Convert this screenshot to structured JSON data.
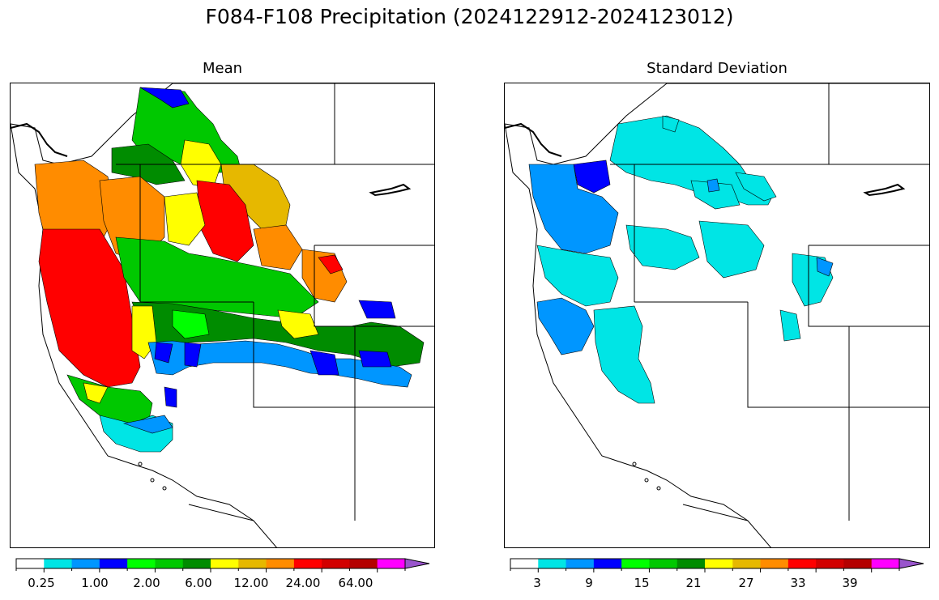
{
  "title": "F084-F108 Precipitation (2024122912-2024123012)",
  "panels": [
    {
      "title": "Mean",
      "colorbar": {
        "colors": [
          "#ffffff",
          "#00e5e5",
          "#0096ff",
          "#0000ff",
          "#00ff00",
          "#00c800",
          "#008c00",
          "#ffff00",
          "#e6b800",
          "#ff8c00",
          "#ff0000",
          "#d20000",
          "#b40000",
          "#ff00ff",
          "#9955cc"
        ],
        "tick_labels": [
          "0.25",
          "1.00",
          "2.00",
          "6.00",
          "12.00",
          "24.00",
          "64.00"
        ],
        "extend": "max"
      }
    },
    {
      "title": "Standard Deviation",
      "colorbar": {
        "colors": [
          "#ffffff",
          "#00e5e5",
          "#0096ff",
          "#0000ff",
          "#00ff00",
          "#00c800",
          "#008c00",
          "#ffff00",
          "#e6b800",
          "#ff8c00",
          "#ff0000",
          "#d20000",
          "#b40000",
          "#ff00ff",
          "#9955cc"
        ],
        "tick_labels": [
          "3",
          "9",
          "15",
          "21",
          "27",
          "33",
          "39"
        ],
        "extend": "max"
      }
    }
  ]
}
